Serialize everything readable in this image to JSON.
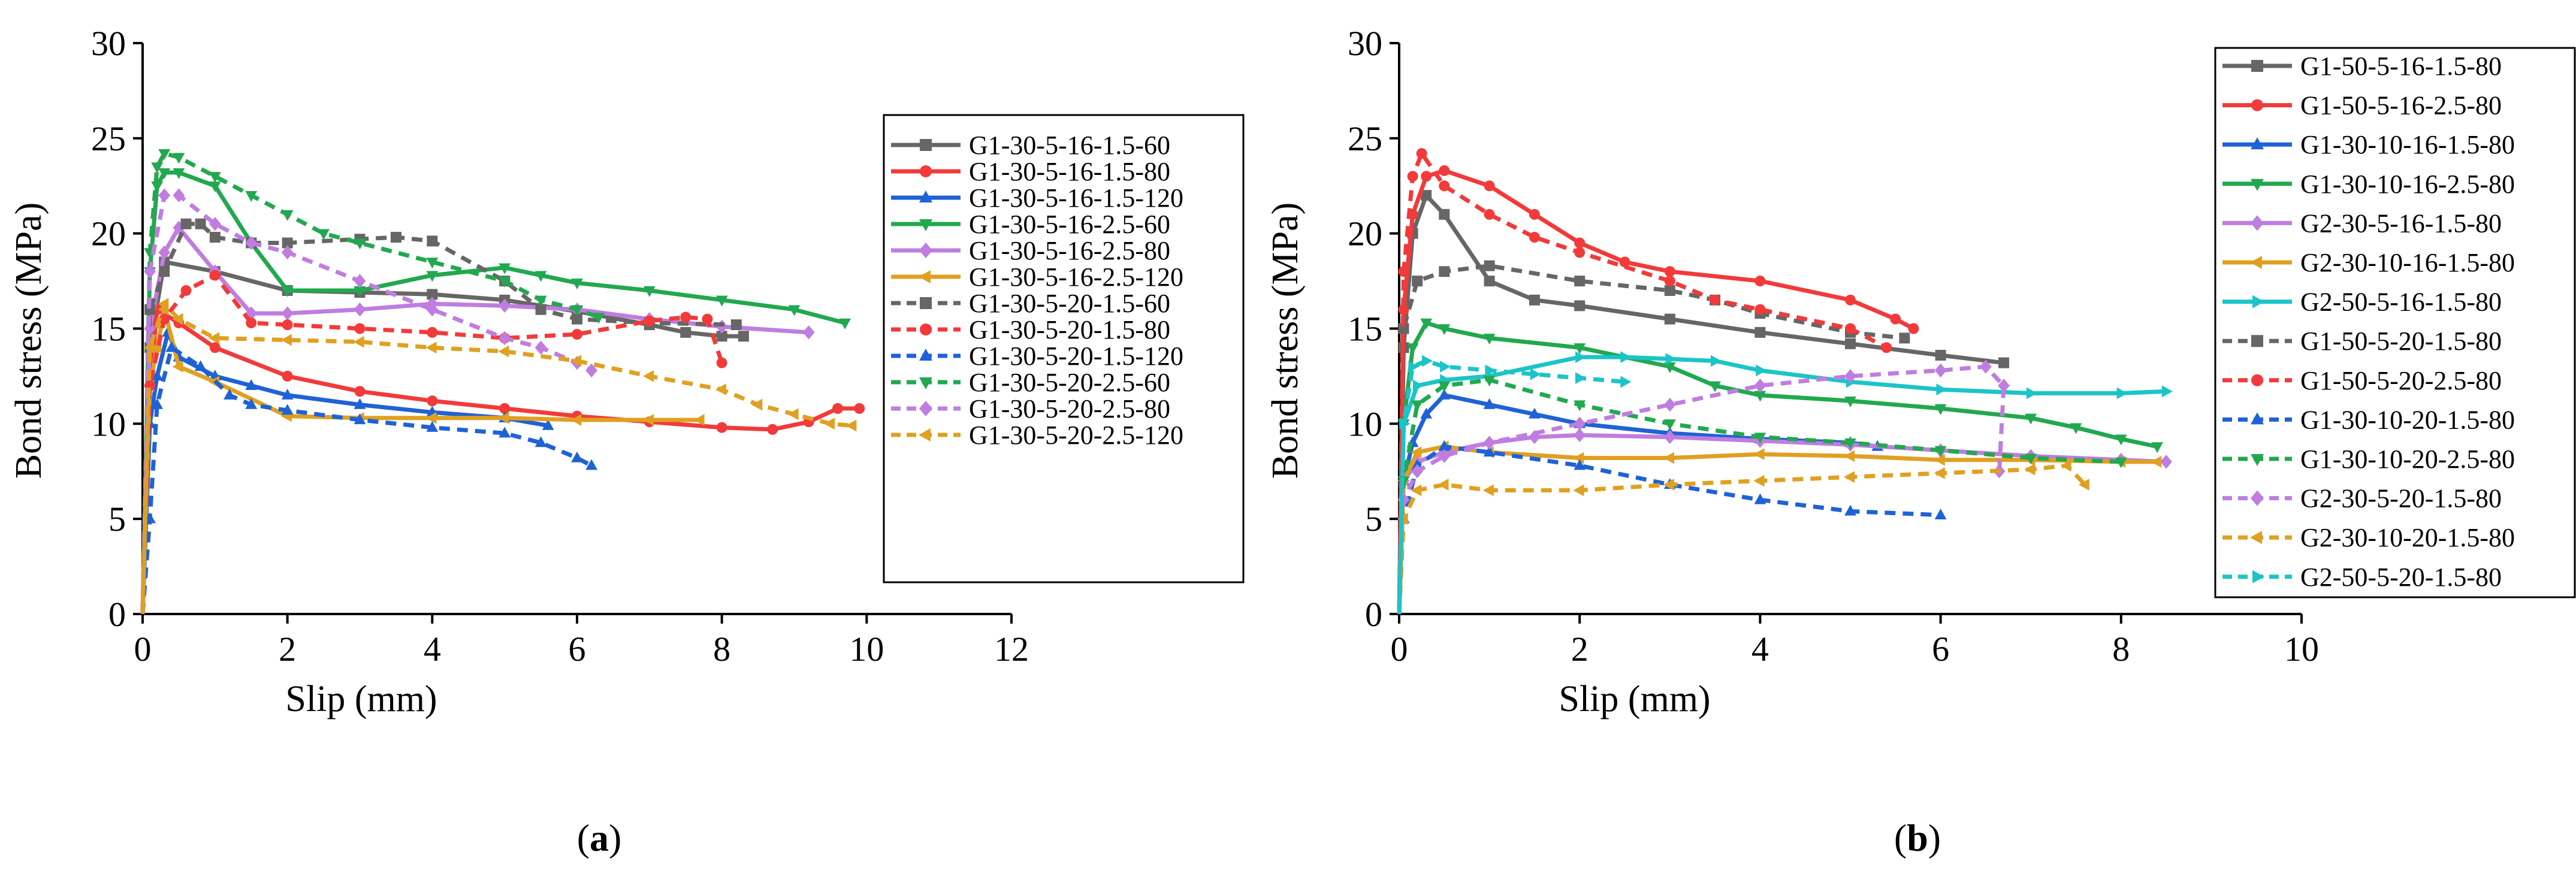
{
  "chart_data": [
    {
      "type": "line",
      "panel_label": "a",
      "xlabel": "Slip (mm)",
      "ylabel": "Bond stress (MPa)",
      "xlim": [
        0,
        12
      ],
      "ylim": [
        0,
        30
      ],
      "xticks": [
        0,
        2,
        4,
        6,
        8,
        10,
        12
      ],
      "yticks": [
        0,
        5,
        10,
        15,
        20,
        25,
        30
      ],
      "series": [
        {
          "name": "G1-30-5-16-1.5-60",
          "color": "#666666",
          "dashed": false,
          "marker": "square",
          "x": [
            0,
            0.1,
            0.3,
            1,
            2,
            3,
            4,
            5,
            6,
            7,
            7.5,
            8,
            8.3
          ],
          "y": [
            0,
            14,
            18.5,
            18,
            17,
            16.9,
            16.8,
            16.5,
            15.9,
            15.2,
            14.8,
            14.6,
            14.6
          ]
        },
        {
          "name": "G1-30-5-16-1.5-80",
          "color": "#f23a3a",
          "dashed": false,
          "marker": "circle",
          "x": [
            0,
            0.1,
            0.2,
            0.5,
            1,
            2,
            3,
            4,
            5,
            6,
            7,
            8,
            8.7,
            9.2,
            9.6,
            9.9
          ],
          "y": [
            0,
            12,
            16,
            15.3,
            14,
            12.5,
            11.7,
            11.2,
            10.8,
            10.4,
            10.1,
            9.8,
            9.7,
            10.1,
            10.8,
            10.8
          ]
        },
        {
          "name": "G1-30-5-16-1.5-120",
          "color": "#1f62d6",
          "dashed": false,
          "marker": "triangle-up",
          "x": [
            0,
            0.1,
            0.2,
            0.35,
            0.5,
            1,
            1.5,
            2,
            3,
            4,
            5,
            5.6
          ],
          "y": [
            0,
            10,
            12.5,
            14.8,
            13.5,
            12.5,
            12,
            11.5,
            11,
            10.6,
            10.3,
            9.9
          ]
        },
        {
          "name": "G1-30-5-16-2.5-60",
          "color": "#22a84f",
          "dashed": false,
          "marker": "triangle-down",
          "x": [
            0,
            0.1,
            0.2,
            0.3,
            0.5,
            1,
            1.5,
            2,
            3,
            4,
            5,
            5.5,
            6,
            7,
            8,
            9,
            9.7
          ],
          "y": [
            0,
            18,
            22.5,
            23.2,
            23.2,
            22.5,
            19.5,
            17,
            17,
            17.8,
            18.2,
            17.8,
            17.4,
            17,
            16.5,
            16,
            15.3
          ]
        },
        {
          "name": "G1-30-5-16-2.5-80",
          "color": "#c07de0",
          "dashed": false,
          "marker": "diamond",
          "x": [
            0,
            0.1,
            0.3,
            0.5,
            1,
            1.5,
            2,
            3,
            4,
            5,
            6,
            7,
            8,
            9.2
          ],
          "y": [
            0,
            15,
            19,
            20.3,
            18,
            15.8,
            15.8,
            16,
            16.3,
            16.2,
            16,
            15.5,
            15.1,
            14.8
          ]
        },
        {
          "name": "G1-30-5-16-2.5-120",
          "color": "#e0a020",
          "dashed": false,
          "marker": "triangle-left",
          "x": [
            0,
            0.1,
            0.2,
            0.3,
            0.5,
            1,
            2,
            3,
            4,
            5,
            6,
            7,
            7.7
          ],
          "y": [
            0,
            12,
            14,
            16,
            13,
            12.2,
            10.4,
            10.3,
            10.3,
            10.3,
            10.2,
            10.2,
            10.2
          ]
        },
        {
          "name": "G1-30-5-20-1.5-60",
          "color": "#666666",
          "dashed": true,
          "marker": "square",
          "x": [
            0,
            0.1,
            0.3,
            0.6,
            0.8,
            1,
            1.5,
            2,
            3,
            3.5,
            4,
            5,
            5.5,
            6,
            7,
            8.2
          ],
          "y": [
            0,
            16,
            18,
            20.5,
            20.5,
            19.8,
            19.5,
            19.5,
            19.7,
            19.8,
            19.6,
            17.5,
            16,
            15.5,
            15.3,
            15.2
          ]
        },
        {
          "name": "G1-30-5-20-1.5-80",
          "color": "#f23a3a",
          "dashed": true,
          "marker": "circle",
          "x": [
            0,
            0.1,
            0.3,
            0.6,
            1,
            1.5,
            2,
            3,
            4,
            5,
            6,
            7,
            7.5,
            7.8,
            8
          ],
          "y": [
            0,
            12,
            15.5,
            17,
            17.8,
            15.3,
            15.2,
            15,
            14.8,
            14.5,
            14.7,
            15.4,
            15.6,
            15.5,
            13.2
          ]
        },
        {
          "name": "G1-30-5-20-1.5-120",
          "color": "#1f62d6",
          "dashed": true,
          "marker": "triangle-up",
          "x": [
            0,
            0.1,
            0.2,
            0.4,
            0.8,
            1.2,
            1.5,
            2,
            3,
            4,
            5,
            5.5,
            6,
            6.2
          ],
          "y": [
            0,
            5,
            11,
            14,
            13,
            11.5,
            11,
            10.7,
            10.2,
            9.8,
            9.5,
            9,
            8.2,
            7.8
          ]
        },
        {
          "name": "G1-30-5-20-2.5-60",
          "color": "#22a84f",
          "dashed": true,
          "marker": "triangle-down",
          "x": [
            0,
            0.1,
            0.2,
            0.3,
            0.5,
            1,
            1.5,
            2,
            2.5,
            3,
            4,
            5,
            5.5,
            6,
            6.3
          ],
          "y": [
            0,
            19,
            23.5,
            24.2,
            24,
            23,
            22,
            21,
            20,
            19.5,
            18.5,
            17.5,
            16.5,
            16,
            15.6
          ]
        },
        {
          "name": "G1-30-5-20-2.5-80",
          "color": "#c07de0",
          "dashed": true,
          "marker": "diamond",
          "x": [
            0,
            0.1,
            0.3,
            0.5,
            1,
            1.5,
            2,
            3,
            4,
            5,
            5.5,
            6,
            6.2
          ],
          "y": [
            0,
            18,
            22,
            22,
            20.5,
            19.5,
            19,
            17.5,
            16,
            14.5,
            14,
            13.2,
            12.8
          ]
        },
        {
          "name": "G1-30-5-20-2.5-120",
          "color": "#e0a020",
          "dashed": true,
          "marker": "triangle-left",
          "x": [
            0,
            0.1,
            0.3,
            0.5,
            1,
            2,
            3,
            4,
            5,
            6,
            7,
            8,
            8.5,
            9,
            9.5,
            9.8
          ],
          "y": [
            0,
            14,
            16.3,
            15.5,
            14.5,
            14.4,
            14.3,
            14,
            13.8,
            13.3,
            12.5,
            11.8,
            11,
            10.5,
            10,
            9.9
          ]
        }
      ]
    },
    {
      "type": "line",
      "panel_label": "b",
      "xlabel": "Slip (mm)",
      "ylabel": "Bond stress (MPa)",
      "xlim": [
        0,
        10
      ],
      "ylim": [
        0,
        30
      ],
      "xticks": [
        0,
        2,
        4,
        6,
        8,
        10
      ],
      "yticks": [
        0,
        5,
        10,
        15,
        20,
        25,
        30
      ],
      "series": [
        {
          "name": "G1-50-5-16-1.5-80",
          "color": "#666666",
          "dashed": false,
          "marker": "square",
          "x": [
            0,
            0.05,
            0.15,
            0.3,
            0.5,
            1,
            1.5,
            2,
            3,
            4,
            5,
            6,
            6.7
          ],
          "y": [
            0,
            14,
            20,
            22,
            21,
            17.5,
            16.5,
            16.2,
            15.5,
            14.8,
            14.2,
            13.6,
            13.2
          ]
        },
        {
          "name": "G1-50-5-16-2.5-80",
          "color": "#f23a3a",
          "dashed": false,
          "marker": "circle",
          "x": [
            0,
            0.05,
            0.15,
            0.3,
            0.5,
            1,
            1.5,
            2,
            2.5,
            3,
            4,
            5,
            5.5,
            5.7
          ],
          "y": [
            0,
            16,
            21,
            23,
            23.3,
            22.5,
            21,
            19.5,
            18.5,
            18,
            17.5,
            16.5,
            15.5,
            15
          ]
        },
        {
          "name": "G1-30-10-16-1.5-80",
          "color": "#1f62d6",
          "dashed": false,
          "marker": "triangle-up",
          "x": [
            0,
            0.05,
            0.15,
            0.3,
            0.5,
            1,
            1.5,
            2,
            3,
            4,
            5,
            5.3
          ],
          "y": [
            0,
            7,
            9,
            10.5,
            11.5,
            11,
            10.5,
            10,
            9.5,
            9.2,
            9,
            8.8
          ]
        },
        {
          "name": "G1-30-10-16-2.5-80",
          "color": "#22a84f",
          "dashed": false,
          "marker": "triangle-down",
          "x": [
            0,
            0.05,
            0.15,
            0.3,
            0.5,
            1,
            2,
            3,
            3.5,
            4,
            5,
            6,
            7,
            7.5,
            8,
            8.4
          ],
          "y": [
            0,
            10,
            14,
            15.3,
            15,
            14.5,
            14,
            13,
            12,
            11.5,
            11.2,
            10.8,
            10.3,
            9.8,
            9.2,
            8.8
          ]
        },
        {
          "name": "G2-30-5-16-1.5-80",
          "color": "#c07de0",
          "dashed": false,
          "marker": "diamond",
          "x": [
            0,
            0.05,
            0.2,
            0.5,
            1,
            1.5,
            2,
            3,
            4,
            5,
            6,
            7,
            8,
            8.5
          ],
          "y": [
            0,
            7,
            8,
            8.5,
            9,
            9.3,
            9.4,
            9.3,
            9.1,
            8.9,
            8.6,
            8.3,
            8.1,
            8
          ]
        },
        {
          "name": "G2-30-10-16-1.5-80",
          "color": "#e0a020",
          "dashed": false,
          "marker": "triangle-left",
          "x": [
            0,
            0.05,
            0.2,
            0.5,
            1,
            2,
            3,
            4,
            5,
            6,
            7,
            8,
            8.4
          ],
          "y": [
            0,
            7,
            8.5,
            8.8,
            8.5,
            8.2,
            8.2,
            8.4,
            8.3,
            8.1,
            8.1,
            8,
            8
          ]
        },
        {
          "name": "G2-50-5-16-1.5-80",
          "color": "#1cc4c8",
          "dashed": false,
          "marker": "triangle-right",
          "x": [
            0,
            0.05,
            0.2,
            0.5,
            1,
            2,
            2.5,
            3,
            3.5,
            4,
            5,
            6,
            7,
            8,
            8.5
          ],
          "y": [
            0,
            10,
            12,
            12.3,
            12.5,
            13.5,
            13.5,
            13.4,
            13.3,
            12.8,
            12.2,
            11.8,
            11.6,
            11.6,
            11.7
          ]
        },
        {
          "name": "G1-50-5-20-1.5-80",
          "color": "#666666",
          "dashed": true,
          "marker": "square",
          "x": [
            0,
            0.05,
            0.2,
            0.5,
            1,
            2,
            3,
            3.5,
            4,
            5,
            5.6
          ],
          "y": [
            0,
            15,
            17.5,
            18,
            18.3,
            17.5,
            17,
            16.5,
            15.8,
            14.8,
            14.5
          ]
        },
        {
          "name": "G1-50-5-20-2.5-80",
          "color": "#f23a3a",
          "dashed": true,
          "marker": "circle",
          "x": [
            0,
            0.05,
            0.15,
            0.25,
            0.5,
            1,
            1.5,
            2,
            3,
            3.5,
            4,
            5,
            5.4
          ],
          "y": [
            0,
            18,
            23,
            24.2,
            22.5,
            21,
            19.8,
            19,
            17.5,
            16.5,
            16,
            15,
            14
          ]
        },
        {
          "name": "G1-30-10-20-1.5-80",
          "color": "#1f62d6",
          "dashed": true,
          "marker": "triangle-up",
          "x": [
            0,
            0.05,
            0.2,
            0.5,
            1,
            2,
            3,
            4,
            5,
            6
          ],
          "y": [
            0,
            5,
            7.8,
            8.8,
            8.5,
            7.8,
            6.8,
            6,
            5.4,
            5.2
          ]
        },
        {
          "name": "G1-30-10-20-2.5-80",
          "color": "#22a84f",
          "dashed": true,
          "marker": "triangle-down",
          "x": [
            0,
            0.05,
            0.2,
            0.5,
            1,
            2,
            3,
            4,
            5,
            6,
            7,
            8
          ],
          "y": [
            0,
            7,
            11,
            12,
            12.3,
            11,
            10,
            9.3,
            9,
            8.6,
            8.2,
            8
          ]
        },
        {
          "name": "G2-30-5-20-1.5-80",
          "color": "#c07de0",
          "dashed": true,
          "marker": "diamond",
          "x": [
            0,
            0.05,
            0.2,
            0.5,
            1,
            2,
            3,
            4,
            5,
            6,
            6.5,
            6.7,
            6.65
          ],
          "y": [
            0,
            6,
            7.5,
            8.3,
            9,
            10,
            11,
            12,
            12.5,
            12.8,
            13,
            12,
            7.5
          ]
        },
        {
          "name": "G2-30-10-20-1.5-80",
          "color": "#e0a020",
          "dashed": true,
          "marker": "triangle-left",
          "x": [
            0,
            0.05,
            0.2,
            0.5,
            1,
            2,
            3,
            4,
            5,
            6,
            7,
            7.4,
            7.6
          ],
          "y": [
            0,
            5,
            6.5,
            6.8,
            6.5,
            6.5,
            6.8,
            7,
            7.2,
            7.4,
            7.6,
            7.8,
            6.8
          ]
        },
        {
          "name": "G2-50-5-20-1.5-80",
          "color": "#1cc4c8",
          "dashed": true,
          "marker": "triangle-right",
          "x": [
            0,
            0.05,
            0.15,
            0.3,
            0.5,
            1,
            1.5,
            2,
            2.5
          ],
          "y": [
            0,
            10,
            13,
            13.3,
            13,
            12.8,
            12.6,
            12.4,
            12.2
          ]
        }
      ]
    }
  ]
}
